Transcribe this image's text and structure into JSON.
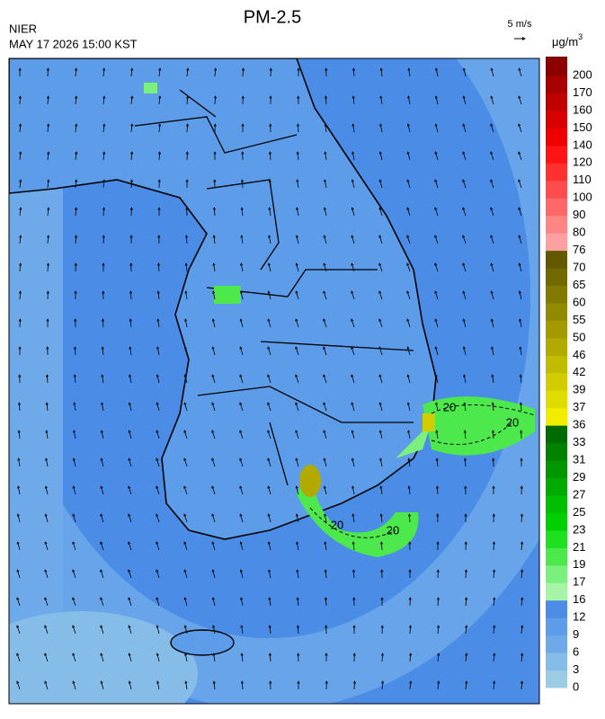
{
  "header": {
    "title": "PM-2.5",
    "agency": "NIER",
    "timestamp": "MAY 17 2026 15:00 KST",
    "wind_scale": "5 m/s",
    "unit": "μg/m",
    "unit_exponent": "3"
  },
  "legend": {
    "top_color": "#6e0000",
    "entries": [
      {
        "label": 0,
        "color": "#9ccbe4"
      },
      {
        "label": 3,
        "color": "#86bde8"
      },
      {
        "label": 6,
        "color": "#6eaaea"
      },
      {
        "label": 9,
        "color": "#5c9ce8"
      },
      {
        "label": 12,
        "color": "#4a8ce6"
      },
      {
        "label": 16,
        "color": "#a6f5a6"
      },
      {
        "label": 17,
        "color": "#7cf07c"
      },
      {
        "label": 19,
        "color": "#4ce84c"
      },
      {
        "label": 21,
        "color": "#1ee01e"
      },
      {
        "label": 23,
        "color": "#00d000"
      },
      {
        "label": 25,
        "color": "#00be00"
      },
      {
        "label": 27,
        "color": "#00aa00"
      },
      {
        "label": 29,
        "color": "#009600"
      },
      {
        "label": 31,
        "color": "#008200"
      },
      {
        "label": 33,
        "color": "#006c00"
      },
      {
        "label": 36,
        "color": "#f2ec00"
      },
      {
        "label": 37,
        "color": "#e0dc00"
      },
      {
        "label": 39,
        "color": "#d2cc00"
      },
      {
        "label": 42,
        "color": "#c2bc00"
      },
      {
        "label": 46,
        "color": "#b2aa00"
      },
      {
        "label": 50,
        "color": "#a29a00"
      },
      {
        "label": 55,
        "color": "#928a00"
      },
      {
        "label": 60,
        "color": "#827a00"
      },
      {
        "label": 65,
        "color": "#726800"
      },
      {
        "label": 70,
        "color": "#625800"
      },
      {
        "label": 76,
        "color": "#ffa0a0"
      },
      {
        "label": 80,
        "color": "#ff8484"
      },
      {
        "label": 90,
        "color": "#ff6868"
      },
      {
        "label": 100,
        "color": "#ff4c4c"
      },
      {
        "label": 110,
        "color": "#ff3030"
      },
      {
        "label": 120,
        "color": "#ff1414"
      },
      {
        "label": 140,
        "color": "#f00000"
      },
      {
        "label": 150,
        "color": "#d80000"
      },
      {
        "label": 160,
        "color": "#c00000"
      },
      {
        "label": 170,
        "color": "#a80000"
      },
      {
        "label": 200,
        "color": "#8c0000"
      }
    ]
  },
  "contour_labels": [
    "20",
    "20",
    "20",
    "20"
  ]
}
